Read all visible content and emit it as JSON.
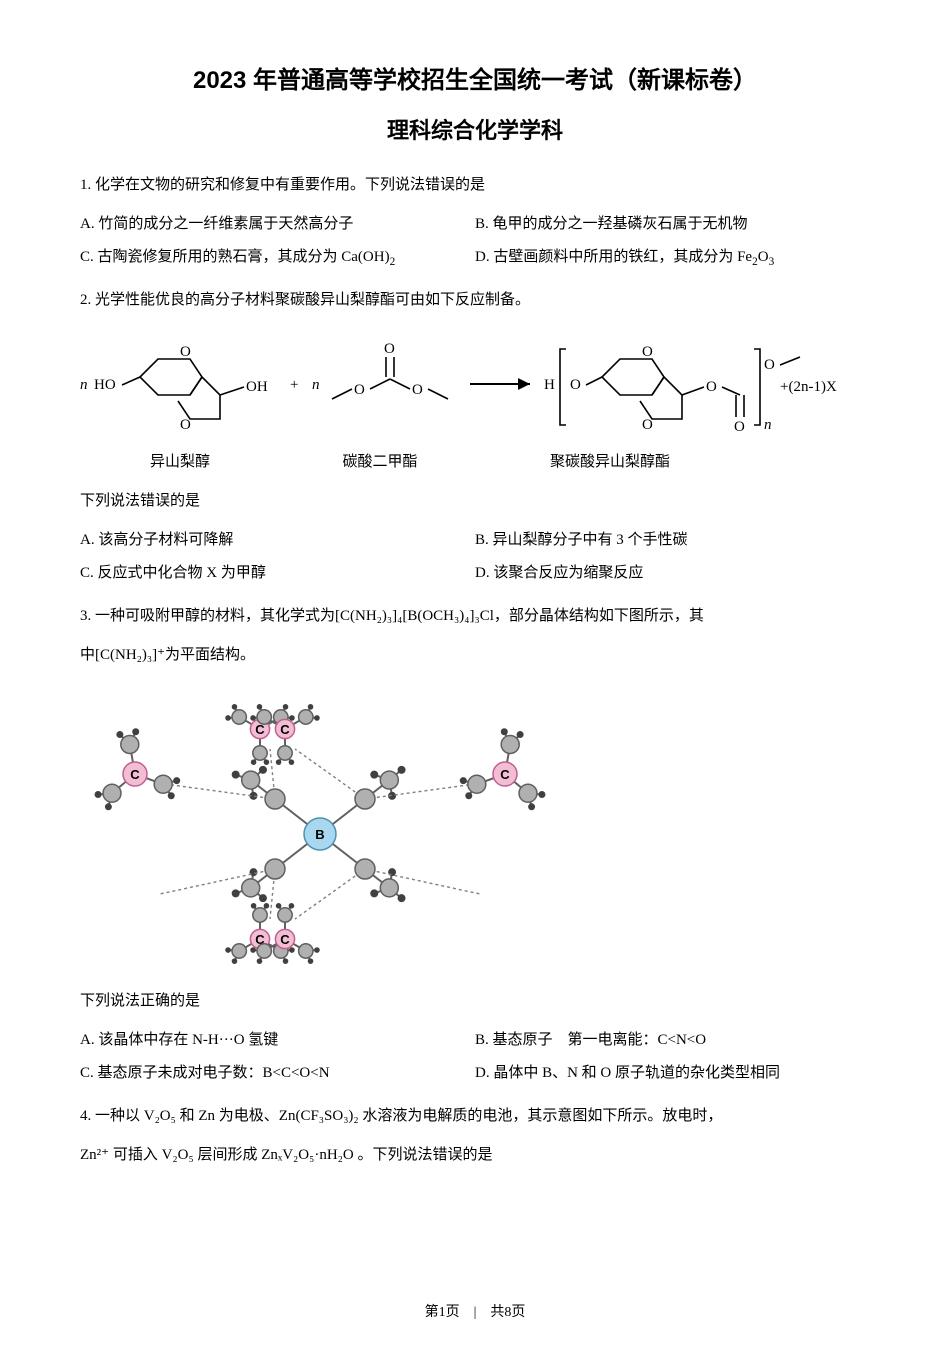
{
  "title_main": "2023 年普通高等学校招生全国统一考试（新课标卷）",
  "title_sub": "理科综合化学学科",
  "q1": {
    "stem": "1. 化学在文物的研究和修复中有重要作用。下列说法错误的是",
    "A": "A. 竹简的成分之一纤维素属于天然高分子",
    "B": "B. 龟甲的成分之一羟基磷灰石属于无机物",
    "C_pre": "C. 古陶瓷修复所用的熟石膏，其成分为 Ca(OH)",
    "C_sub": "2",
    "D_pre": "D. 古壁画颜料中所用的铁红，其成分为 Fe",
    "D_mid": "2",
    "D_o": "O",
    "D_end": "3"
  },
  "q2": {
    "stem": "2. 光学性能优良的高分子材料聚碳酸异山梨醇酯可由如下反应制备。",
    "label1": "异山梨醇",
    "label2": "碳酸二甲酯",
    "label3": "聚碳酸异山梨醇酯",
    "follow": "下列说法错误的是",
    "A": "A. 该高分子材料可降解",
    "B": "B. 异山梨醇分子中有 3 个手性碳",
    "C": "C. 反应式中化合物 X 为甲醇",
    "D": "D. 该聚合反应为缩聚反应",
    "eq_tail": "+(2n-1)X"
  },
  "q3": {
    "stem_pre": "3. 一种可吸附甲醇的材料，其化学式为",
    "stem_formula": "[C(NH₂)₃]₄[B(OCH₃)₄]₃Cl",
    "stem_post": "，部分晶体结构如下图所示，其",
    "stem2_pre": "中",
    "stem2_formula": "[C(NH₂)₃]⁺",
    "stem2_post": "为平面结构。",
    "follow": "下列说法正确的是",
    "A": "A. 该晶体中存在 N-H···O 氢键",
    "B": "B. 基态原子　第一电离能：C<N<O",
    "C": "C. 基态原子未成对电子数：B<C<O<N",
    "D": "D. 晶体中 B、N 和 O 原子轨道的杂化类型相同",
    "colors": {
      "C_fill": "#f4bdd6",
      "C_stroke": "#c06090",
      "B_fill": "#a8d8f0",
      "B_stroke": "#5090b0",
      "gray_fill": "#b0b0b0",
      "gray_stroke": "#606060",
      "small_fill": "#404040",
      "bond": "#606060",
      "hbond": "#808080"
    }
  },
  "q4": {
    "stem_p1": "4. 一种以 V₂O₅ 和 Zn 为电极、Zn(CF₃SO₃)₂ 水溶液为电解质的电池，其示意图如下所示。放电时，",
    "stem_p2": "Zn²⁺ 可插入 V₂O₅ 层间形成 ZnₓV₂O₅·nH₂O 。下列说法错误的是"
  },
  "footer": "第1页　|　共8页"
}
